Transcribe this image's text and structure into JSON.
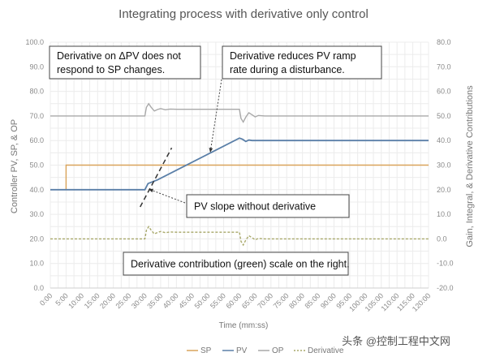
{
  "chart_data": {
    "type": "line",
    "title": "Integrating process with derivative only control",
    "xlabel": "Time (mm:ss)",
    "ylabel": "Controller PV, SP, & OP",
    "y2label": "Gain, Integral, & Derivative Contributions",
    "xlim": [
      0,
      120
    ],
    "ylim": [
      0,
      100
    ],
    "y2lim": [
      -20,
      80
    ],
    "grid": true,
    "legend_position": "bottom",
    "x_ticks": [
      "0:00",
      "5:00",
      "10:00",
      "15:00",
      "20:00",
      "25:00",
      "30:00",
      "35:00",
      "40:00",
      "45:00",
      "50:00",
      "55:00",
      "60:00",
      "65:00",
      "70:00",
      "75:00",
      "80:00",
      "85:00",
      "90:00",
      "95:00",
      "100:00",
      "105:00",
      "110:00",
      "115:00",
      "120:00"
    ],
    "y_ticks": [
      "0.0",
      "10.0",
      "20.0",
      "30.0",
      "40.0",
      "50.0",
      "60.0",
      "70.0",
      "80.0",
      "90.0",
      "100.0"
    ],
    "y2_ticks": [
      "-20.0",
      "-10.0",
      "0.0",
      "10.0",
      "20.0",
      "30.0",
      "40.0",
      "50.0",
      "60.0",
      "70.0",
      "80.0"
    ],
    "series": [
      {
        "name": "SP",
        "axis": "left",
        "color": "#d9a35a",
        "dash": false,
        "x": [
          0,
          5,
          5,
          120
        ],
        "y": [
          40,
          40,
          50,
          50
        ]
      },
      {
        "name": "PV",
        "axis": "left",
        "color": "#5a7fa8",
        "dash": false,
        "x": [
          0,
          30,
          31,
          32,
          34,
          60,
          61,
          62,
          63,
          64,
          120
        ],
        "y": [
          40,
          40,
          42.5,
          43,
          44,
          61,
          60.5,
          59.6,
          60.2,
          60,
          60
        ]
      },
      {
        "name": "OP",
        "axis": "left",
        "color": "#a9a9a9",
        "dash": false,
        "x": [
          0,
          30,
          30.5,
          31.2,
          32,
          33,
          34,
          35,
          36.5,
          38,
          40,
          60,
          60.5,
          61.2,
          62,
          63,
          64,
          65,
          66,
          68,
          120
        ],
        "y": [
          70,
          70,
          73.5,
          75,
          73.5,
          72,
          72.6,
          73,
          72.5,
          72.8,
          72.7,
          72.7,
          69,
          67.5,
          69.5,
          71.3,
          70.5,
          69.6,
          70.2,
          70,
          70
        ]
      },
      {
        "name": "Derivative",
        "axis": "right",
        "color": "#a8a86a",
        "dash": true,
        "x": [
          0,
          30,
          30.5,
          31.2,
          32,
          33,
          34,
          35,
          36.5,
          38,
          40,
          60,
          60.5,
          61.2,
          62,
          63,
          64,
          65,
          66,
          68,
          120
        ],
        "y": [
          0,
          0,
          3.5,
          5,
          3.5,
          2,
          2.6,
          3,
          2.5,
          2.8,
          2.7,
          2.7,
          -1,
          -2.5,
          -0.5,
          1.3,
          0.5,
          -0.4,
          0.2,
          0,
          0
        ]
      }
    ],
    "slope_line": {
      "x": [
        28.5,
        38.5
      ],
      "y": [
        33,
        57
      ],
      "color": "#333333"
    },
    "annotations": [
      {
        "id": "sp",
        "lines": [
          "Derivative on ΔPV does not",
          "respond to SP changes."
        ]
      },
      {
        "id": "ramp",
        "lines": [
          "Derivative reduces PV ramp",
          "rate during a disturbance."
        ]
      },
      {
        "id": "slope",
        "lines": [
          "PV slope without derivative"
        ]
      },
      {
        "id": "scale",
        "lines": [
          "Derivative contribution (green) scale on the right."
        ]
      }
    ]
  },
  "watermark": "头条 @控制工程中文网"
}
